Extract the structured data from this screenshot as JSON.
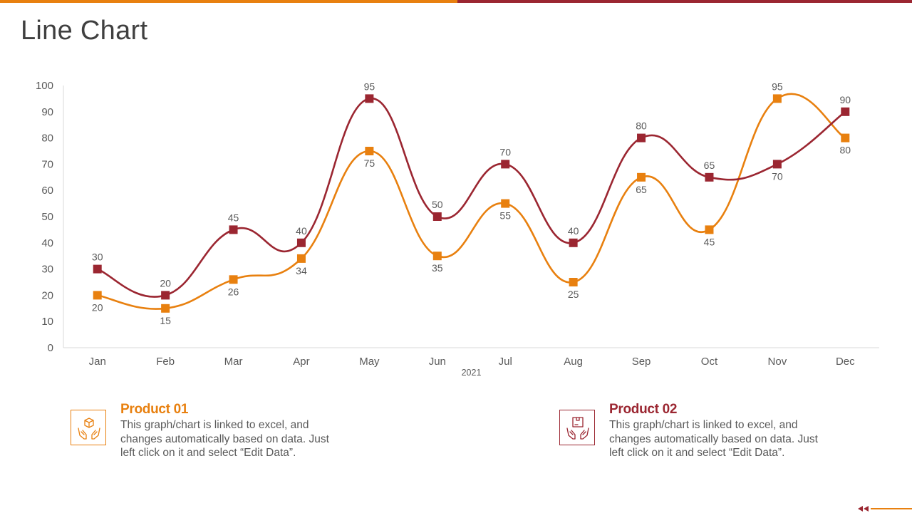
{
  "page": {
    "title": "Line Chart"
  },
  "colors": {
    "accent_orange": "#e8800f",
    "accent_maroon": "#9b2631",
    "text": "#595959",
    "axis": "#d9d9d9"
  },
  "chart_data": {
    "type": "line",
    "title": "",
    "xlabel": "2021",
    "ylabel": "",
    "categories": [
      "Jan",
      "Feb",
      "Mar",
      "Apr",
      "May",
      "Jun",
      "Jul",
      "Aug",
      "Sep",
      "Oct",
      "Nov",
      "Dec"
    ],
    "series": [
      {
        "name": "Product 01",
        "color": "#e8800f",
        "values": [
          20,
          15,
          26,
          34,
          75,
          35,
          55,
          25,
          65,
          45,
          95,
          80
        ]
      },
      {
        "name": "Product 02",
        "color": "#9b2631",
        "values": [
          30,
          20,
          45,
          40,
          95,
          50,
          70,
          40,
          80,
          65,
          70,
          90
        ]
      }
    ],
    "ylim": [
      0,
      100
    ],
    "yticks": [
      0,
      10,
      20,
      30,
      40,
      50,
      60,
      70,
      80,
      90,
      100
    ],
    "grid": false,
    "smooth": true,
    "marker": "square",
    "data_labels": true
  },
  "products": [
    {
      "title": "Product 01",
      "description": "This graph/chart is linked to excel, and changes automatically based on data. Just left click on it and select “Edit Data”.",
      "icon": "hands-box-icon",
      "color": "#e8800f"
    },
    {
      "title": "Product 02",
      "description": "This graph/chart is linked to excel, and changes automatically based on data. Just left click on it and select “Edit Data”.",
      "icon": "hands-package-icon",
      "color": "#9b2631"
    }
  ]
}
